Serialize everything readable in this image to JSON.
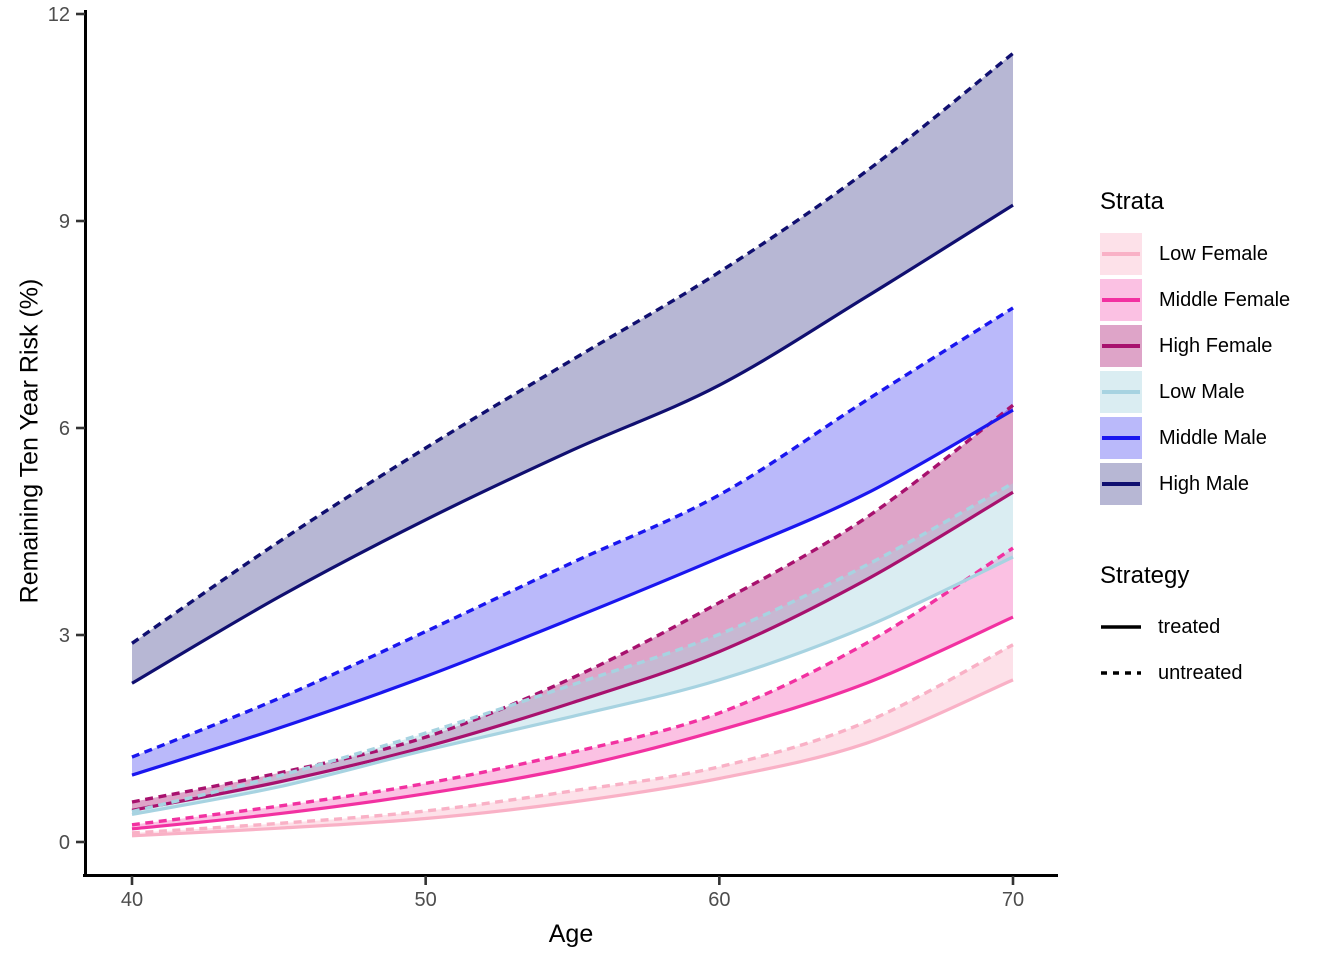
{
  "figure": {
    "background": "#ffffff",
    "axis_line_color": "#000000",
    "tick_mark_color": "#333333",
    "tick_label_color": "#4d4d4d"
  },
  "legend": {
    "strata_title": "Strata",
    "strategy_title": "Strategy"
  },
  "chart_data": {
    "type": "line",
    "title": "",
    "xlabel": "Age",
    "ylabel": "Remaining Ten Year Risk (%)",
    "x": [
      40,
      45,
      50,
      55,
      60,
      65,
      70
    ],
    "x_ticks": [
      40,
      50,
      60,
      70
    ],
    "y_ticks": [
      0,
      3,
      6,
      9,
      12
    ],
    "xlim": [
      38.4,
      71.5
    ],
    "ylim": [
      -0.5,
      12.05
    ],
    "grid": "off",
    "legend_position": "right",
    "strategies": [
      {
        "name": "treated",
        "linetype": "solid"
      },
      {
        "name": "untreated",
        "linetype": "dashed"
      }
    ],
    "series": [
      {
        "name": "Low Female",
        "color": "#F9B1C6",
        "fill": "rgba(249,177,198,0.38)",
        "treated": [
          0.09,
          0.2,
          0.34,
          0.58,
          0.92,
          1.43,
          2.35
        ],
        "untreated": [
          0.13,
          0.27,
          0.45,
          0.74,
          1.09,
          1.74,
          2.86
        ]
      },
      {
        "name": "Middle Female",
        "color": "#F231A1",
        "fill": "rgba(242,49,161,0.30)",
        "treated": [
          0.19,
          0.41,
          0.7,
          1.08,
          1.62,
          2.3,
          3.26
        ],
        "untreated": [
          0.25,
          0.52,
          0.85,
          1.3,
          1.87,
          2.88,
          4.26
        ]
      },
      {
        "name": "High Female",
        "color": "#A8116E",
        "fill": "rgba(168,17,110,0.38)",
        "treated": [
          0.46,
          0.87,
          1.38,
          2.02,
          2.76,
          3.8,
          5.07
        ],
        "untreated": [
          0.58,
          1.0,
          1.52,
          2.38,
          3.47,
          4.7,
          6.33
        ]
      },
      {
        "name": "Low Male",
        "color": "#A7D3E1",
        "fill": "rgba(167,211,225,0.42)",
        "treated": [
          0.4,
          0.8,
          1.33,
          1.82,
          2.35,
          3.12,
          4.13
        ],
        "untreated": [
          0.44,
          0.96,
          1.58,
          2.28,
          3.01,
          4.01,
          5.2
        ]
      },
      {
        "name": "Middle Male",
        "color": "#1A16EF",
        "fill": "rgba(26,22,239,0.30)",
        "treated": [
          0.97,
          1.65,
          2.4,
          3.24,
          4.12,
          5.05,
          6.26
        ],
        "untreated": [
          1.23,
          2.08,
          3.05,
          4.05,
          5.03,
          6.4,
          7.74
        ]
      },
      {
        "name": "High Male",
        "color": "#100F70",
        "fill": "rgba(16,15,112,0.30)",
        "treated": [
          2.3,
          3.55,
          4.67,
          5.68,
          6.62,
          7.9,
          9.23
        ],
        "untreated": [
          2.88,
          4.35,
          5.71,
          6.99,
          8.26,
          9.72,
          11.43
        ]
      }
    ]
  }
}
